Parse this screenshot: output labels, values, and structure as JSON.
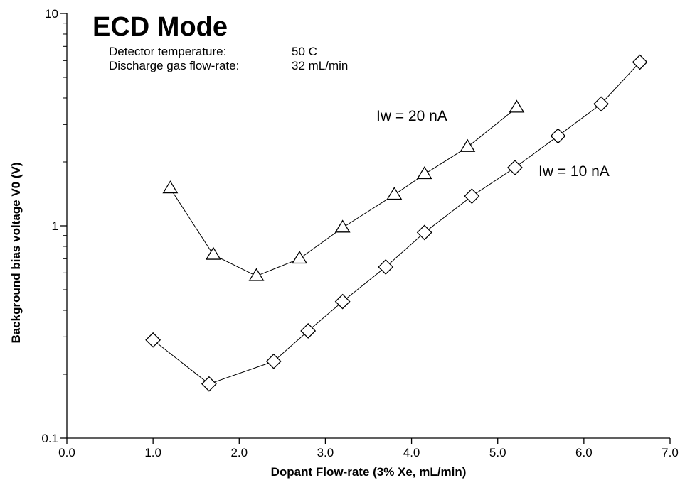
{
  "chart_data": {
    "type": "line",
    "title": "ECD Mode",
    "info": [
      {
        "label": "Detector temperature:",
        "value": "50 C"
      },
      {
        "label": "Discharge gas flow-rate:",
        "value": "32 mL/min"
      }
    ],
    "xlabel": "Dopant Flow-rate (3% Xe, mL/min)",
    "ylabel": "Background bias voltage V0 (V)",
    "xlim": [
      0,
      7
    ],
    "ylim": [
      0.1,
      10
    ],
    "yscale": "log",
    "grid": false,
    "xticks": [
      "0.0",
      "1.0",
      "2.0",
      "3.0",
      "4.0",
      "5.0",
      "6.0",
      "7.0"
    ],
    "yticks": [
      {
        "value": 0.1,
        "label": "0.1"
      },
      {
        "value": 1,
        "label": "1"
      },
      {
        "value": 10,
        "label": "10"
      }
    ],
    "series": [
      {
        "name": "Iw = 20 nA",
        "marker": "triangle",
        "x": [
          1.2,
          1.7,
          2.2,
          2.7,
          3.2,
          3.8,
          4.15,
          4.65,
          5.22
        ],
        "y": [
          1.5,
          0.73,
          0.58,
          0.7,
          0.98,
          1.4,
          1.75,
          2.35,
          3.6
        ]
      },
      {
        "name": "Iw = 10 nA",
        "marker": "diamond",
        "x": [
          1.0,
          1.65,
          2.4,
          2.8,
          3.2,
          3.7,
          4.15,
          4.7,
          5.2,
          5.7,
          6.2,
          6.65
        ],
        "y": [
          0.29,
          0.18,
          0.23,
          0.32,
          0.44,
          0.64,
          0.93,
          1.38,
          1.88,
          2.65,
          3.75,
          5.9
        ]
      }
    ]
  }
}
